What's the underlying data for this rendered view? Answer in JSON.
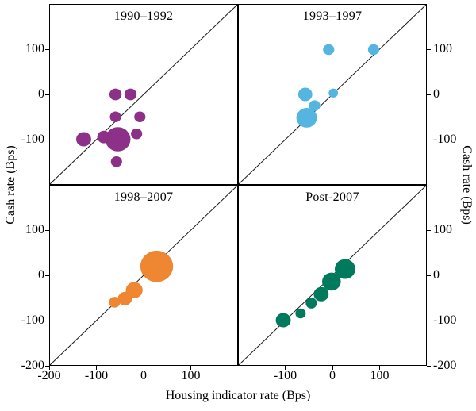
{
  "figure": {
    "background": "#ffffff",
    "axis_color": "#000000",
    "diagonal_line_color": "#1a1a1a"
  },
  "chart_data": {
    "type": "scatter",
    "subtype": "bubble-small-multiples",
    "title": "",
    "xlabel": "Housing indicator rate (Bps)",
    "ylabel": "Cash rate (Bps)",
    "ylabel_right": "Cash rate (Bps)",
    "xlim": [
      -200,
      200
    ],
    "ylim": [
      -200,
      200
    ],
    "grid": false,
    "legend": "none",
    "reference_line": "45-degree diagonal y=x in each panel",
    "y_ticks_top": [
      100,
      0,
      -100
    ],
    "y_ticks_bottom": [
      100,
      0,
      -100,
      -200
    ],
    "x_ticks_left": [
      -200,
      -100,
      0,
      100
    ],
    "x_ticks_right": [
      -100,
      0,
      100
    ],
    "panels": [
      {
        "title": "1990–1992",
        "color": "#8d3088",
        "points": [
          {
            "x": -60,
            "y": 0,
            "r": 13
          },
          {
            "x": -28,
            "y": 0,
            "r": 13
          },
          {
            "x": -60,
            "y": -50,
            "r": 12
          },
          {
            "x": -8,
            "y": -50,
            "r": 12
          },
          {
            "x": -128,
            "y": -100,
            "r": 16
          },
          {
            "x": -85,
            "y": -95,
            "r": 14
          },
          {
            "x": -55,
            "y": -100,
            "r": 27
          },
          {
            "x": -15,
            "y": -88,
            "r": 12
          },
          {
            "x": -58,
            "y": -150,
            "r": 12
          }
        ]
      },
      {
        "title": "1993–1997",
        "color": "#53b5e0",
        "points": [
          {
            "x": -8,
            "y": 100,
            "r": 12
          },
          {
            "x": 88,
            "y": 100,
            "r": 12
          },
          {
            "x": -58,
            "y": 0,
            "r": 15
          },
          {
            "x": 2,
            "y": 3,
            "r": 10
          },
          {
            "x": -38,
            "y": -25,
            "r": 12
          },
          {
            "x": -55,
            "y": -52,
            "r": 22
          }
        ]
      },
      {
        "title": "1998–2007",
        "color": "#ee8632",
        "points": [
          {
            "x": -62,
            "y": -60,
            "r": 12
          },
          {
            "x": -40,
            "y": -52,
            "r": 15
          },
          {
            "x": -20,
            "y": -33,
            "r": 18
          },
          {
            "x": 28,
            "y": 20,
            "r": 35
          }
        ]
      },
      {
        "title": "Post-2007",
        "color": "#007a5d",
        "points": [
          {
            "x": -105,
            "y": -100,
            "r": 16
          },
          {
            "x": -68,
            "y": -85,
            "r": 11
          },
          {
            "x": -45,
            "y": -62,
            "r": 12
          },
          {
            "x": -24,
            "y": -42,
            "r": 16
          },
          {
            "x": -2,
            "y": -14,
            "r": 20
          },
          {
            "x": 27,
            "y": 14,
            "r": 22
          }
        ]
      }
    ]
  }
}
